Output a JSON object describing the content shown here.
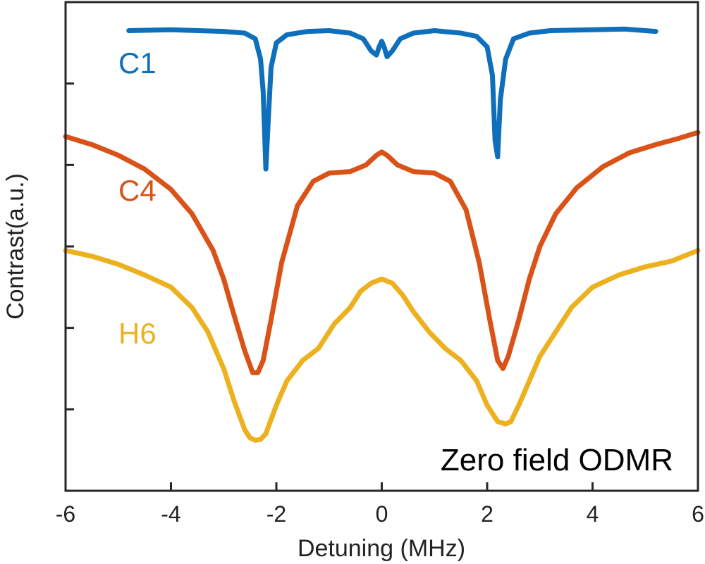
{
  "chart_data": {
    "type": "line",
    "title": "",
    "xlabel": "Detuning (MHz)",
    "ylabel": "Contrast(a.u.)",
    "xlim": [
      -6,
      6
    ],
    "ylim": [
      0,
      6
    ],
    "xticks": [
      -6,
      -4,
      -2,
      0,
      2,
      4,
      6
    ],
    "xtick_labels": [
      "-6",
      "-4",
      "-2",
      "0",
      "2",
      "4",
      "6"
    ],
    "yticks": [
      1,
      2,
      3,
      4,
      5
    ],
    "ytick_labels": [
      "",
      "",
      "",
      "",
      ""
    ],
    "grid": false,
    "annotation": "Zero field ODMR",
    "series": [
      {
        "name": "C1",
        "color": "#0f6fba",
        "x": [
          -4.8,
          -4.0,
          -3.0,
          -2.6,
          -2.4,
          -2.3,
          -2.25,
          -2.2,
          -2.15,
          -2.1,
          -2.0,
          -1.8,
          -1.4,
          -1.0,
          -0.6,
          -0.35,
          -0.2,
          -0.1,
          -0.05,
          0.0,
          0.05,
          0.1,
          0.2,
          0.35,
          0.6,
          1.0,
          1.5,
          1.8,
          2.0,
          2.1,
          2.15,
          2.2,
          2.25,
          2.35,
          2.5,
          2.8,
          3.2,
          4.0,
          4.6,
          5.2
        ],
        "y": [
          5.65,
          5.66,
          5.64,
          5.62,
          5.55,
          5.3,
          4.9,
          3.95,
          4.6,
          5.2,
          5.5,
          5.6,
          5.64,
          5.65,
          5.62,
          5.55,
          5.4,
          5.35,
          5.45,
          5.52,
          5.44,
          5.33,
          5.4,
          5.55,
          5.62,
          5.65,
          5.62,
          5.58,
          5.45,
          5.1,
          4.3,
          4.1,
          4.8,
          5.3,
          5.55,
          5.62,
          5.65,
          5.66,
          5.67,
          5.64
        ]
      },
      {
        "name": "C4",
        "color": "#d95319",
        "x": [
          -6.0,
          -5.5,
          -5.0,
          -4.5,
          -4.0,
          -3.6,
          -3.2,
          -3.0,
          -2.8,
          -2.6,
          -2.45,
          -2.35,
          -2.25,
          -2.1,
          -1.9,
          -1.6,
          -1.3,
          -1.0,
          -0.6,
          -0.3,
          -0.1,
          0.0,
          0.1,
          0.3,
          0.6,
          1.0,
          1.3,
          1.6,
          1.85,
          2.05,
          2.2,
          2.3,
          2.4,
          2.6,
          2.8,
          3.0,
          3.3,
          3.7,
          4.2,
          4.7,
          5.2,
          5.6,
          6.0
        ],
        "y": [
          4.35,
          4.25,
          4.12,
          3.95,
          3.7,
          3.4,
          2.95,
          2.6,
          2.15,
          1.72,
          1.45,
          1.45,
          1.6,
          2.1,
          2.8,
          3.5,
          3.8,
          3.9,
          3.92,
          4.0,
          4.12,
          4.16,
          4.12,
          4.0,
          3.92,
          3.9,
          3.8,
          3.45,
          2.8,
          2.1,
          1.6,
          1.5,
          1.65,
          2.1,
          2.6,
          3.0,
          3.4,
          3.72,
          3.98,
          4.15,
          4.25,
          4.32,
          4.4
        ]
      },
      {
        "name": "H6",
        "color": "#edb120",
        "x": [
          -6.0,
          -5.5,
          -5.0,
          -4.5,
          -4.0,
          -3.6,
          -3.3,
          -3.0,
          -2.8,
          -2.6,
          -2.5,
          -2.4,
          -2.3,
          -2.2,
          -2.0,
          -1.8,
          -1.5,
          -1.2,
          -0.9,
          -0.6,
          -0.4,
          -0.2,
          0.0,
          0.2,
          0.4,
          0.6,
          0.9,
          1.2,
          1.5,
          1.8,
          2.0,
          2.2,
          2.35,
          2.45,
          2.6,
          2.8,
          3.0,
          3.3,
          3.6,
          4.0,
          4.5,
          5.0,
          5.5,
          6.0
        ],
        "y": [
          2.95,
          2.88,
          2.78,
          2.65,
          2.5,
          2.25,
          1.95,
          1.5,
          1.1,
          0.75,
          0.65,
          0.62,
          0.63,
          0.7,
          1.05,
          1.35,
          1.6,
          1.75,
          2.05,
          2.25,
          2.45,
          2.55,
          2.6,
          2.55,
          2.4,
          2.2,
          1.95,
          1.75,
          1.6,
          1.35,
          1.05,
          0.85,
          0.82,
          0.85,
          1.05,
          1.35,
          1.65,
          1.95,
          2.25,
          2.5,
          2.65,
          2.75,
          2.82,
          2.95
        ]
      }
    ]
  }
}
